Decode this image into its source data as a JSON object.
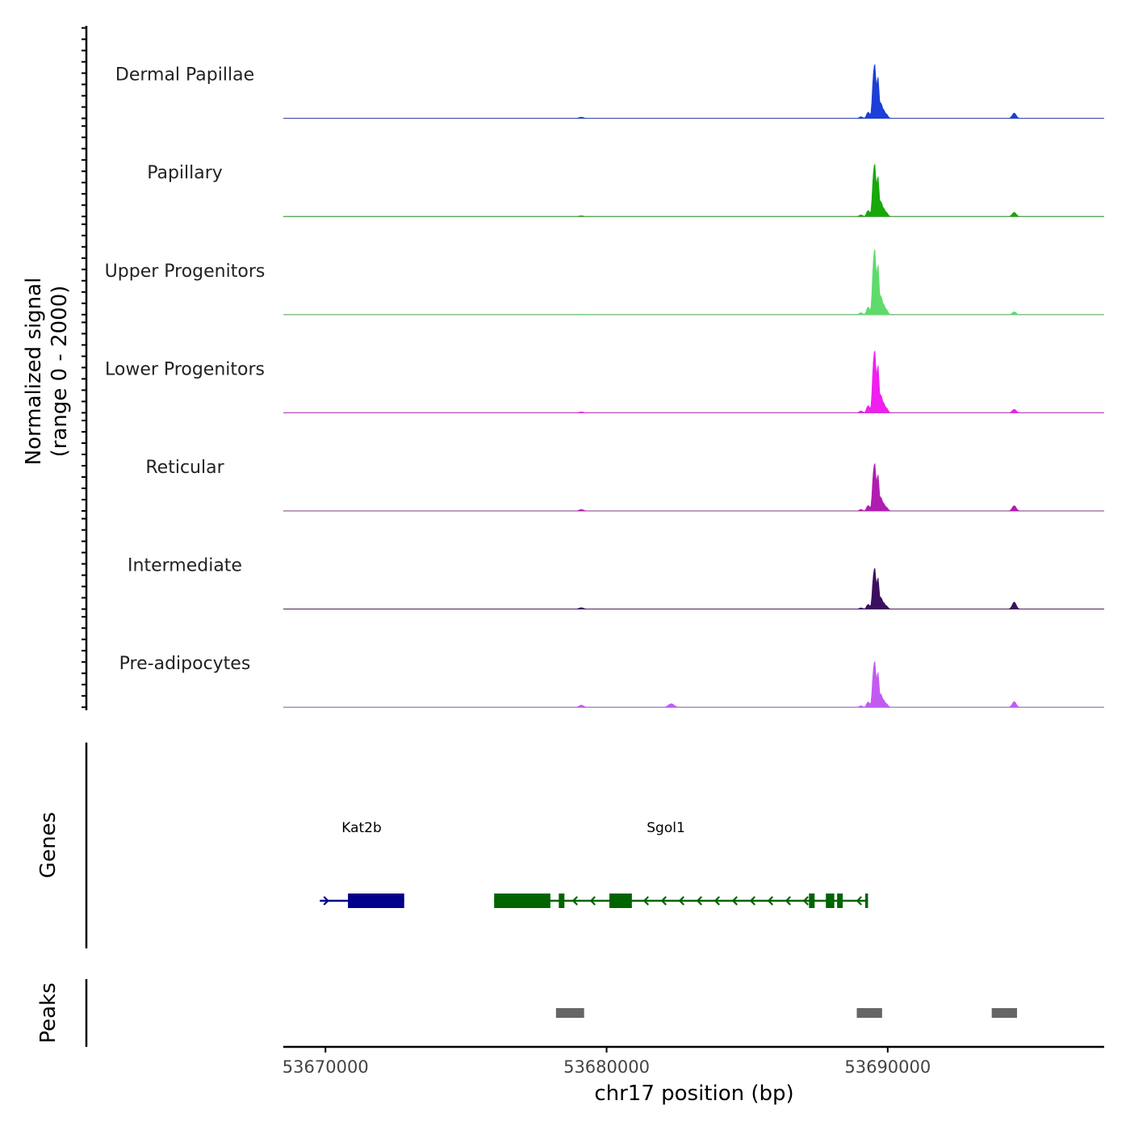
{
  "chart_data": {
    "type": "area",
    "title": "",
    "chromosome": "chr17",
    "xlabel": "chr17 position (bp)",
    "xlim": [
      53668500,
      53697700
    ],
    "xticks": [
      53670000,
      53680000,
      53690000
    ],
    "tick_labels": [
      "53670000",
      "53680000",
      "53690000"
    ],
    "ylabel_line1": "Normalized signal",
    "ylabel_line2": "(range 0 - 2000)",
    "ylim": [
      0,
      2000
    ],
    "peak_centers": [
      53679100,
      53689500,
      53694500
    ],
    "series": [
      {
        "name": "Dermal Papillae",
        "color": "#1c3fd8",
        "peak_heights": [
          35,
          1650,
          150
        ]
      },
      {
        "name": "Papillary",
        "color": "#17a80a",
        "peak_heights": [
          20,
          1600,
          120
        ]
      },
      {
        "name": "Upper Progenitors",
        "color": "#5edb6c",
        "peak_heights": [
          15,
          2000,
          80
        ]
      },
      {
        "name": "Lower Progenitors",
        "color": "#f01ef0",
        "peak_heights": [
          25,
          1900,
          100
        ]
      },
      {
        "name": "Reticular",
        "color": "#b01cb0",
        "peak_heights": [
          40,
          1450,
          150
        ]
      },
      {
        "name": "Intermediate",
        "color": "#3b0f5e",
        "peak_heights": [
          40,
          1250,
          200
        ]
      },
      {
        "name": "Pre-adipocytes",
        "color": "#c25af2",
        "peak_heights": [
          60,
          1400,
          160
        ]
      }
    ],
    "genes_panel_label": "Genes",
    "genes": [
      {
        "name": "Kat2b",
        "color": "#00008b",
        "strand": "+",
        "start": 53669800,
        "end": 53672800,
        "exons": [
          [
            53670800,
            53672800
          ]
        ]
      },
      {
        "name": "Sgol1",
        "color": "#006400",
        "strand": "-",
        "start": 53676000,
        "end": 53689300,
        "exons": [
          [
            53676000,
            53678000
          ],
          [
            53678300,
            53678500
          ],
          [
            53680100,
            53680900
          ],
          [
            53687200,
            53687400
          ],
          [
            53687800,
            53688100
          ],
          [
            53688200,
            53688400
          ],
          [
            53689200,
            53689300
          ]
        ]
      }
    ],
    "peaks_panel_label": "Peaks",
    "peaks_color": "#666666",
    "peaks": [
      [
        53678200,
        53679200
      ],
      [
        53688900,
        53689800
      ],
      [
        53693700,
        53694600
      ]
    ]
  }
}
